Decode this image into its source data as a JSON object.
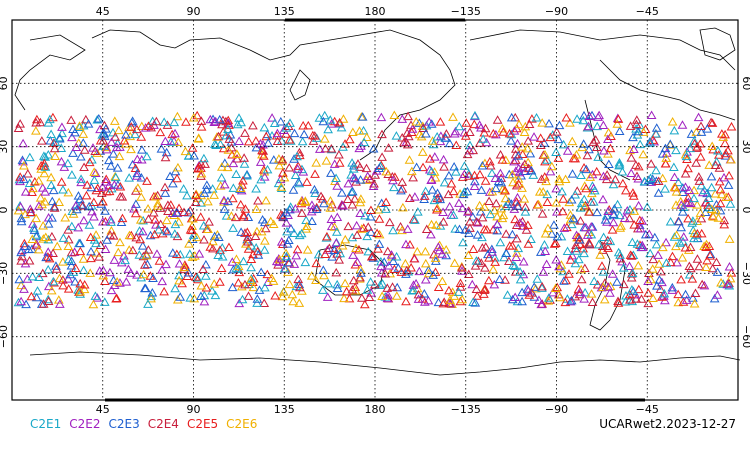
{
  "map": {
    "lon_ticks": [
      "45",
      "90",
      "135",
      "180",
      "−135",
      "−90",
      "−45"
    ],
    "lat_ticks": [
      "60",
      "30",
      "0",
      "−30",
      "−60"
    ],
    "lon_center": 180,
    "lat_range": [
      -90,
      90
    ],
    "observation_lat_band": [
      -45,
      45
    ],
    "marker_shape": "open-triangle"
  },
  "legend": [
    {
      "label": "C2E1",
      "color": "#19a8c8"
    },
    {
      "label": "C2E2",
      "color": "#a020c0"
    },
    {
      "label": "C2E3",
      "color": "#1e5fd0"
    },
    {
      "label": "C2E4",
      "color": "#c81e3c"
    },
    {
      "label": "C2E5",
      "color": "#e81e1e"
    },
    {
      "label": "C2E6",
      "color": "#f0b000"
    }
  ],
  "footer": {
    "label": "UCARwet2.2023-12-27"
  }
}
